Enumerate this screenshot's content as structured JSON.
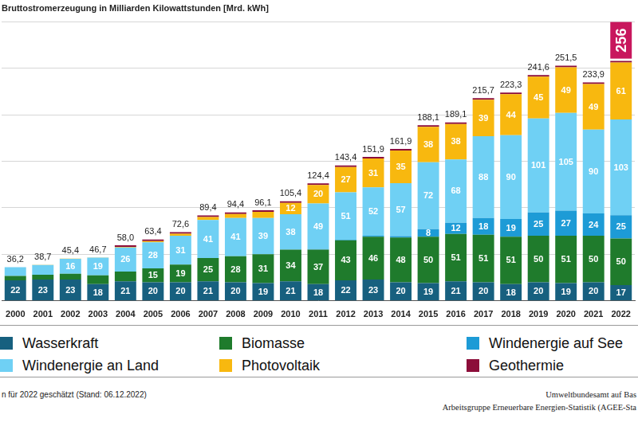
{
  "chart_data": {
    "type": "bar",
    "title": "Bruttostromerzeugung in Milliarden Kilowattstunden [Mrd. kWh]",
    "categories": [
      "2000",
      "2001",
      "2002",
      "2003",
      "2004",
      "2005",
      "2006",
      "2007",
      "2008",
      "2009",
      "2010",
      "2011",
      "2012",
      "2013",
      "2014",
      "2015",
      "2016",
      "2017",
      "2018",
      "2019",
      "2020",
      "2021",
      "2022"
    ],
    "series": [
      {
        "name": "Wasserkraft",
        "color": "#17607f",
        "values": [
          22,
          23,
          23,
          18,
          21,
          20,
          20,
          21,
          20,
          19,
          21,
          18,
          22,
          23,
          20,
          19,
          21,
          20,
          18,
          20,
          19,
          20,
          17
        ],
        "value_labels": [
          "22",
          "23",
          "23",
          "18",
          "21",
          "20",
          "20",
          "21",
          "20",
          "19",
          "21",
          "18",
          "22",
          "23",
          "20",
          "19",
          "21",
          "20",
          "18",
          "20",
          "19",
          "20",
          "17"
        ]
      },
      {
        "name": "Biomasse",
        "color": "#1f7b2c",
        "values": [
          4.7,
          5.1,
          6.2,
          9.4,
          10.4,
          15,
          19,
          25,
          28,
          31,
          34,
          37,
          43,
          46,
          48,
          50,
          51,
          51,
          51,
          50,
          51,
          50,
          50
        ],
        "value_labels": [
          null,
          null,
          null,
          null,
          null,
          "15",
          "19",
          "25",
          "28",
          "31",
          "34",
          "37",
          "43",
          "46",
          "48",
          "50",
          "51",
          "51",
          "51",
          "50",
          "51",
          "50",
          "50"
        ]
      },
      {
        "name": "Windenergie auf See",
        "color": "#1d9bd6",
        "values": [
          null,
          null,
          null,
          null,
          null,
          null,
          null,
          null,
          null,
          0.04,
          0.2,
          0.6,
          0.7,
          0.9,
          1.5,
          8,
          12,
          18,
          19,
          25,
          27,
          24,
          25
        ],
        "value_labels": [
          null,
          null,
          null,
          null,
          null,
          null,
          null,
          null,
          null,
          null,
          null,
          null,
          null,
          null,
          null,
          "8",
          "12",
          "18",
          "19",
          "25",
          "27",
          "24",
          "25"
        ]
      },
      {
        "name": "Windenergie an Land",
        "color": "#6fd0f4",
        "values": [
          9.5,
          10.5,
          16,
          19,
          26,
          28,
          31,
          41,
          41,
          39,
          38,
          49,
          51,
          52,
          57,
          72,
          68,
          88,
          90,
          101,
          105,
          90,
          103
        ],
        "value_labels": [
          null,
          null,
          "16",
          "19",
          "26",
          "28",
          "31",
          "41",
          "41",
          "39",
          "38",
          "49",
          "51",
          "52",
          "57",
          "72",
          "68",
          "88",
          "90",
          "101",
          "105",
          "90",
          "103"
        ]
      },
      {
        "name": "Photovoltaik",
        "color": "#f8b80f",
        "values": [
          0.06,
          0.1,
          0.2,
          0.3,
          0.6,
          1.3,
          2.2,
          3.1,
          4.4,
          6.6,
          12,
          20,
          27,
          31,
          35,
          38,
          38,
          39,
          44,
          45,
          49,
          49,
          61
        ],
        "value_labels": [
          null,
          null,
          null,
          null,
          null,
          null,
          null,
          null,
          null,
          null,
          "12",
          "20",
          "27",
          "31",
          "35",
          "38",
          "38",
          "39",
          "44",
          "45",
          "49",
          "49",
          "61"
        ]
      },
      {
        "name": "Geothermie",
        "color": "#8c0d3a",
        "values": [
          null,
          null,
          null,
          null,
          0.01,
          0.01,
          0.01,
          0.01,
          0.02,
          0.02,
          0.03,
          0.02,
          0.03,
          0.08,
          0.1,
          0.13,
          0.18,
          0.16,
          0.18,
          0.2,
          0.23,
          0.25,
          0.2
        ]
      }
    ],
    "totals": {
      "values": [
        36.2,
        38.7,
        45.4,
        46.7,
        58.0,
        63.4,
        72.6,
        89.4,
        94.4,
        96.1,
        105.4,
        124.4,
        143.4,
        151.9,
        161.9,
        188.1,
        189.1,
        215.7,
        223.3,
        241.6,
        251.5,
        233.9,
        256
      ],
      "value_labels": [
        "36,2",
        "38,7",
        "45,4",
        "46,7",
        "58,0",
        "63,4",
        "72,6",
        "89,4",
        "94,4",
        "96,1",
        "105,4",
        "124,4",
        "143,4",
        "151,9",
        "161,9",
        "188,1",
        "189,1",
        "215,7",
        "223,3",
        "241,6",
        "251,5",
        "233,9",
        "256"
      ]
    },
    "stacked": true,
    "data_labels": true,
    "ylim": [
      0,
      300
    ],
    "yticks": [
      0,
      50,
      100,
      150,
      200,
      250,
      300
    ],
    "grid": true,
    "tick_labels": "x",
    "legend": "bottom",
    "note": "n für 2022 geschätzt (Stand: 06.12.2022)",
    "source": [
      "Umweltbundesamt auf Bas",
      "Arbeitsgruppe Erneuerbare Energien-Statistik (AGEE-Sta"
    ]
  }
}
